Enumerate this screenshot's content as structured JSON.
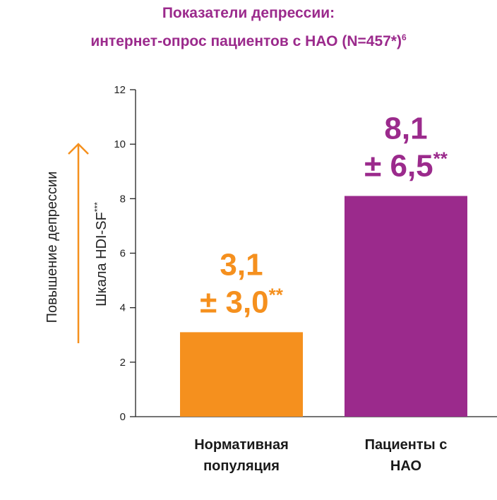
{
  "title_line1": "Показатели депрессии:",
  "title_line2": "интернет-опрос пациентов с НАО (N=457*)",
  "title_superscript": "6",
  "colors": {
    "title": "#9b2a8c",
    "orange": "#f5901e",
    "purple": "#9b2a8c",
    "axis": "#222222",
    "arrow": "#f5901e"
  },
  "chart_data": {
    "type": "bar",
    "title": "Показатели депрессии: интернет-опрос пациентов с НАО (N=457*)",
    "ylabel": "Шкала HDI-SF",
    "ylabel_suffix": "***",
    "direction_label": "Повышение депрессии",
    "ylim": [
      0,
      12
    ],
    "yticks": [
      0,
      2,
      4,
      6,
      8,
      10,
      12
    ],
    "grid": false,
    "categories": [
      [
        "Нормативная",
        "популяция"
      ],
      [
        "Пациенты с",
        "НАО"
      ]
    ],
    "values": [
      3.1,
      8.1
    ],
    "errors": [
      3.0,
      6.5
    ],
    "value_labels": [
      "3,1",
      "8,1"
    ],
    "error_labels": [
      "± 3,0",
      "± 6,5"
    ],
    "label_suffix": "**",
    "bar_colors": [
      "#f5901e",
      "#9b2a8c"
    ]
  }
}
